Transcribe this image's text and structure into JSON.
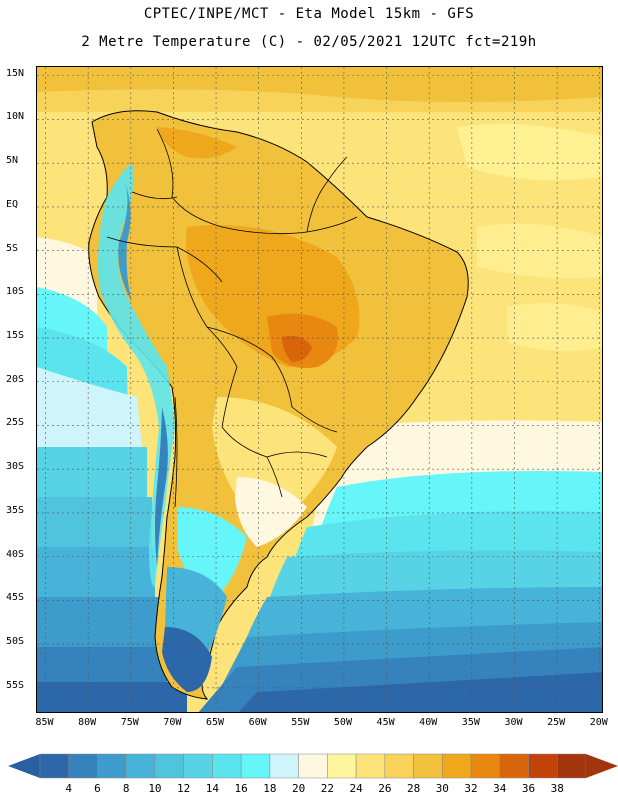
{
  "header": {
    "line1": "CPTEC/INPE/MCT -  Eta Model 15km - GFS",
    "line2": "2 Metre Temperature (C) - 02/05/2021 12UTC fct=219h"
  },
  "map": {
    "region": "South America",
    "lat_range": [
      -58,
      16
    ],
    "lon_range": [
      -86,
      -19.5
    ],
    "lat_labels": [
      "15N",
      "10N",
      "5N",
      "EQ",
      "5S",
      "10S",
      "15S",
      "20S",
      "25S",
      "30S",
      "35S",
      "40S",
      "45S",
      "50S",
      "55S"
    ],
    "lat_values": [
      15,
      10,
      5,
      0,
      -5,
      -10,
      -15,
      -20,
      -25,
      -30,
      -35,
      -40,
      -45,
      -50,
      -55
    ],
    "lon_labels": [
      "85W",
      "80W",
      "75W",
      "70W",
      "65W",
      "60W",
      "55W",
      "50W",
      "45W",
      "40W",
      "35W",
      "30W",
      "25W",
      "20W"
    ],
    "lon_values": [
      -85,
      -80,
      -75,
      -70,
      -65,
      -60,
      -55,
      -50,
      -45,
      -40,
      -35,
      -30,
      -25,
      -20
    ]
  },
  "colorbar": {
    "levels": [
      "4",
      "6",
      "8",
      "10",
      "12",
      "14",
      "16",
      "18",
      "20",
      "22",
      "24",
      "26",
      "28",
      "30",
      "32",
      "34",
      "36",
      "38"
    ],
    "colors": [
      "#2c67a9",
      "#3582bd",
      "#3d9ccc",
      "#48b3d8",
      "#50c4dd",
      "#57d3e5",
      "#5ce4ee",
      "#66f5f8",
      "#cff4fb",
      "#fff8e0",
      "#fff59c",
      "#fde47a",
      "#f7d35a",
      "#f2c13c",
      "#efa71c",
      "#e88810",
      "#d9650a",
      "#c1430a",
      "#a2350e"
    ],
    "under_color": "#2a5fa3",
    "over_color": "#a2350e"
  },
  "style": {
    "grid_color": "#555555",
    "border_color": "#000000"
  }
}
